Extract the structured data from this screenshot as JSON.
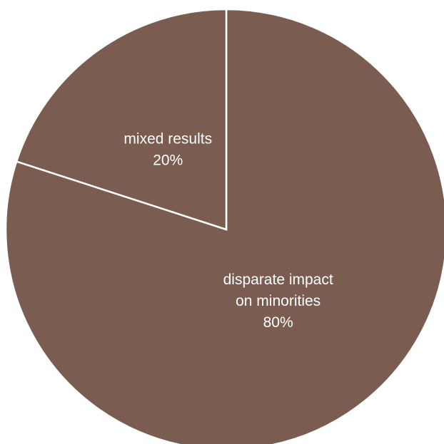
{
  "chart_data": {
    "type": "pie",
    "title": "",
    "start_angle_deg": 0,
    "direction": "clockwise",
    "slice_color": "#7a5c50",
    "separator_color": "#ffffff",
    "slices": [
      {
        "label_lines": [
          "disparate impact",
          "on minorities"
        ],
        "value": 80,
        "value_label": "80%"
      },
      {
        "label_lines": [
          "mixed results"
        ],
        "value": 20,
        "value_label": "20%"
      }
    ]
  }
}
